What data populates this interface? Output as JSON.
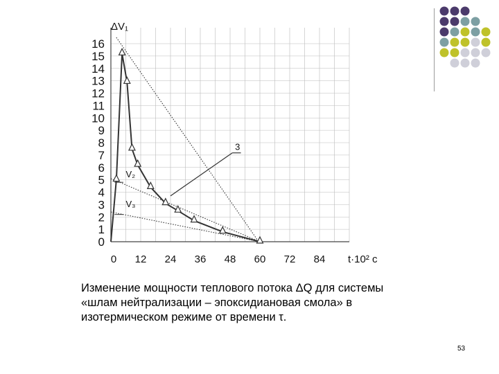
{
  "decoration": {
    "dot_colors": {
      "purple": "#4b3a6b",
      "teal": "#7d9fa3",
      "olive": "#bfc22a",
      "grey": "#cfcfd9"
    },
    "dot_grid": [
      [
        "purple",
        "purple",
        "purple",
        "",
        ""
      ],
      [
        "purple",
        "purple",
        "teal",
        "teal",
        ""
      ],
      [
        "purple",
        "teal",
        "olive",
        "teal",
        "olive"
      ],
      [
        "teal",
        "olive",
        "olive",
        "grey",
        "olive"
      ],
      [
        "olive",
        "olive",
        "grey",
        "grey",
        "grey"
      ],
      [
        "",
        "grey",
        "grey",
        "grey",
        ""
      ]
    ]
  },
  "chart_data": {
    "type": "line",
    "title": "",
    "xlabel": "t·10² c",
    "ylabel": "ΔV₁",
    "xlim": [
      0,
      96
    ],
    "ylim": [
      0,
      16
    ],
    "x_tick_labels": [
      "0",
      "12",
      "24",
      "36",
      "48",
      "60",
      "72",
      "84"
    ],
    "y_tick_labels": [
      "0",
      "1",
      "2",
      "3",
      "4",
      "5",
      "6",
      "7",
      "8",
      "9",
      "10",
      "11",
      "12",
      "13",
      "14",
      "15",
      "16"
    ],
    "grid": true,
    "series": [
      {
        "marker": "triangle",
        "x": [
          0,
          2.2,
          4.5,
          6.5,
          8.5,
          10.8,
          16,
          22,
          27,
          33.5,
          45,
          60
        ],
        "y": [
          0,
          5,
          15.2,
          12.9,
          7.5,
          6.2,
          4.4,
          3.1,
          2.5,
          1.7,
          0.8,
          0
        ]
      }
    ],
    "tangents": [
      {
        "x": [
          2.2,
          59.5
        ],
        "y": [
          16.5,
          0
        ]
      },
      {
        "x": [
          0,
          60
        ],
        "y": [
          5.1,
          0
        ]
      },
      {
        "x": [
          0,
          60
        ],
        "y": [
          2.4,
          0
        ]
      }
    ],
    "annotations": [
      {
        "text": "V₂",
        "x": 6,
        "y": 5.2
      },
      {
        "text": "V₃",
        "x": 6,
        "y": 2.8
      },
      {
        "text": "3",
        "x": 50,
        "y": 7.4
      }
    ]
  },
  "caption": {
    "line1": "Изменение мощности теплового потока ΔQ для системы",
    "line2": "«шлам нейтрализации – эпоксидиановая смола» в",
    "line3": "изотермическом режиме от времени τ."
  },
  "page_number": "53"
}
